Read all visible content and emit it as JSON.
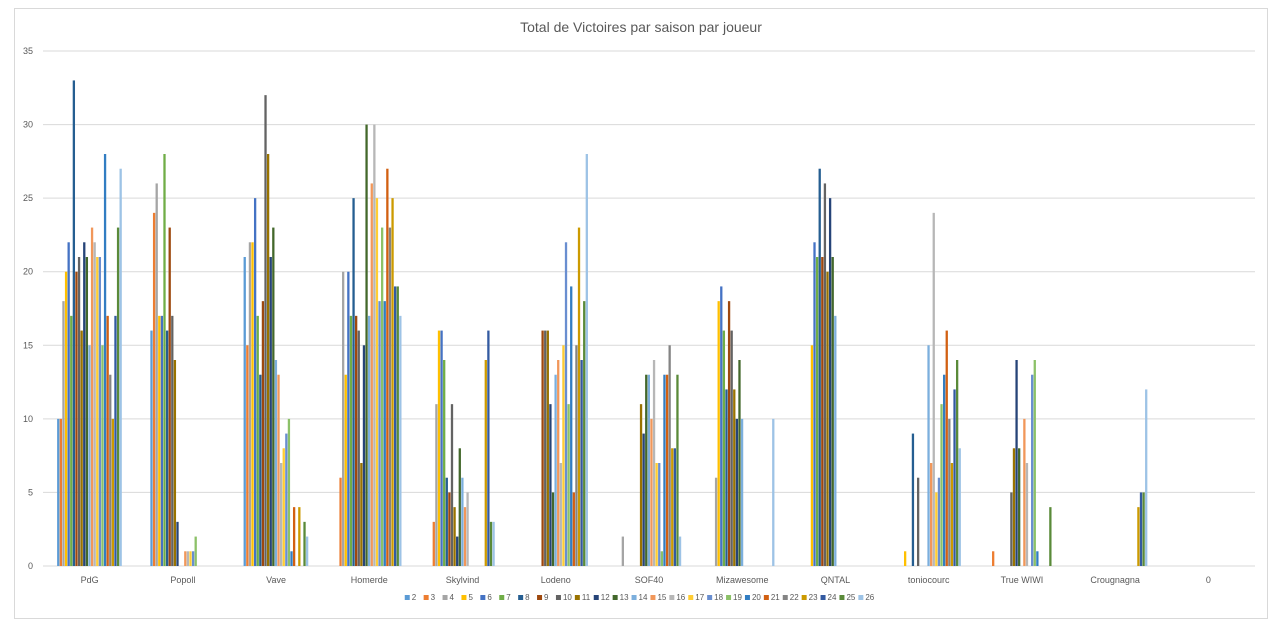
{
  "chart_data": {
    "type": "bar",
    "title": "Total de Victoires par saison par joueur",
    "xlabel": "",
    "ylabel": "",
    "ylim": [
      0,
      35
    ],
    "yticks": [
      0,
      5,
      10,
      15,
      20,
      25,
      30,
      35
    ],
    "grid": true,
    "legend_position": "bottom",
    "categories": [
      "PdG",
      "Popoll",
      "Vave",
      "Homerde",
      "Skylvind",
      "Lodeno",
      "SOF40",
      "Mizawesome",
      "QNTAL",
      "toniocourc",
      "True WIWI",
      "Crougnagna",
      "0"
    ],
    "series": [
      {
        "name": "2",
        "color": "#5b9bd5",
        "values": [
          10,
          16,
          21,
          0,
          0,
          0,
          0,
          0,
          0,
          0,
          0,
          0,
          0
        ]
      },
      {
        "name": "3",
        "color": "#ed7d31",
        "values": [
          10,
          24,
          15,
          6,
          3,
          0,
          0,
          0,
          0,
          0,
          1,
          0,
          0
        ]
      },
      {
        "name": "4",
        "color": "#a5a5a5",
        "values": [
          18,
          26,
          22,
          20,
          11,
          0,
          2,
          6,
          0,
          0,
          0,
          0,
          0
        ]
      },
      {
        "name": "5",
        "color": "#ffc000",
        "values": [
          20,
          17,
          22,
          13,
          16,
          0,
          0,
          18,
          15,
          1,
          0,
          0,
          0
        ]
      },
      {
        "name": "6",
        "color": "#4472c4",
        "values": [
          22,
          17,
          25,
          20,
          16,
          0,
          0,
          19,
          22,
          0,
          0,
          0,
          0
        ]
      },
      {
        "name": "7",
        "color": "#70ad47",
        "values": [
          17,
          28,
          17,
          17,
          14,
          0,
          0,
          16,
          21,
          0,
          0,
          0,
          0
        ]
      },
      {
        "name": "8",
        "color": "#255e91",
        "values": [
          33,
          16,
          13,
          25,
          6,
          0,
          0,
          12,
          27,
          9,
          0,
          0,
          0
        ]
      },
      {
        "name": "9",
        "color": "#9e480e",
        "values": [
          20,
          23,
          18,
          17,
          5,
          16,
          0,
          18,
          21,
          0,
          0,
          0,
          0
        ]
      },
      {
        "name": "10",
        "color": "#636363",
        "values": [
          21,
          17,
          32,
          16,
          11,
          16,
          0,
          16,
          26,
          6,
          5,
          0,
          0
        ]
      },
      {
        "name": "11",
        "color": "#997300",
        "values": [
          16,
          14,
          28,
          7,
          4,
          16,
          11,
          12,
          20,
          0,
          8,
          0,
          0
        ]
      },
      {
        "name": "12",
        "color": "#264478",
        "values": [
          22,
          3,
          21,
          15,
          2,
          11,
          9,
          10,
          25,
          0,
          14,
          0,
          0
        ]
      },
      {
        "name": "13",
        "color": "#43682b",
        "values": [
          21,
          0,
          23,
          30,
          8,
          5,
          13,
          14,
          21,
          0,
          8,
          0,
          0
        ]
      },
      {
        "name": "14",
        "color": "#7cafdd",
        "values": [
          15,
          0,
          14,
          17,
          6,
          13,
          13,
          10,
          17,
          15,
          0,
          0,
          0
        ]
      },
      {
        "name": "15",
        "color": "#f1975a",
        "values": [
          23,
          1,
          13,
          26,
          4,
          14,
          10,
          0,
          0,
          7,
          10,
          0,
          0
        ]
      },
      {
        "name": "16",
        "color": "#b7b7b7",
        "values": [
          22,
          1,
          7,
          30,
          5,
          7,
          14,
          0,
          0,
          24,
          7,
          0,
          0
        ]
      },
      {
        "name": "17",
        "color": "#ffcd33",
        "values": [
          21,
          1,
          8,
          25,
          0,
          15,
          7,
          0,
          0,
          5,
          0,
          0,
          0
        ]
      },
      {
        "name": "18",
        "color": "#698ed0",
        "values": [
          21,
          1,
          9,
          18,
          0,
          22,
          7,
          0,
          0,
          6,
          13,
          0,
          0
        ]
      },
      {
        "name": "19",
        "color": "#8cc168",
        "values": [
          15,
          2,
          10,
          23,
          0,
          11,
          1,
          0,
          0,
          11,
          14,
          0,
          0
        ]
      },
      {
        "name": "20",
        "color": "#327dc2",
        "values": [
          28,
          0,
          1,
          18,
          0,
          19,
          13,
          0,
          0,
          13,
          1,
          0,
          0
        ]
      },
      {
        "name": "21",
        "color": "#d26012",
        "values": [
          17,
          0,
          4,
          27,
          0,
          5,
          13,
          0,
          0,
          16,
          0,
          0,
          0
        ]
      },
      {
        "name": "22",
        "color": "#848484",
        "values": [
          13,
          0,
          0,
          23,
          0,
          15,
          15,
          0,
          0,
          10,
          0,
          0,
          0
        ]
      },
      {
        "name": "23",
        "color": "#cc9a00",
        "values": [
          10,
          0,
          4,
          25,
          14,
          23,
          8,
          0,
          0,
          7,
          0,
          4,
          0
        ]
      },
      {
        "name": "24",
        "color": "#335aa1",
        "values": [
          17,
          0,
          0,
          19,
          16,
          14,
          8,
          0,
          0,
          12,
          0,
          5,
          0
        ]
      },
      {
        "name": "25",
        "color": "#5a8a39",
        "values": [
          23,
          0,
          3,
          19,
          3,
          18,
          13,
          0,
          0,
          14,
          4,
          5,
          0
        ]
      },
      {
        "name": "26",
        "color": "#9dc3e6",
        "values": [
          27,
          0,
          2,
          17,
          3,
          28,
          2,
          10,
          0,
          8,
          0,
          12,
          0
        ]
      }
    ]
  }
}
